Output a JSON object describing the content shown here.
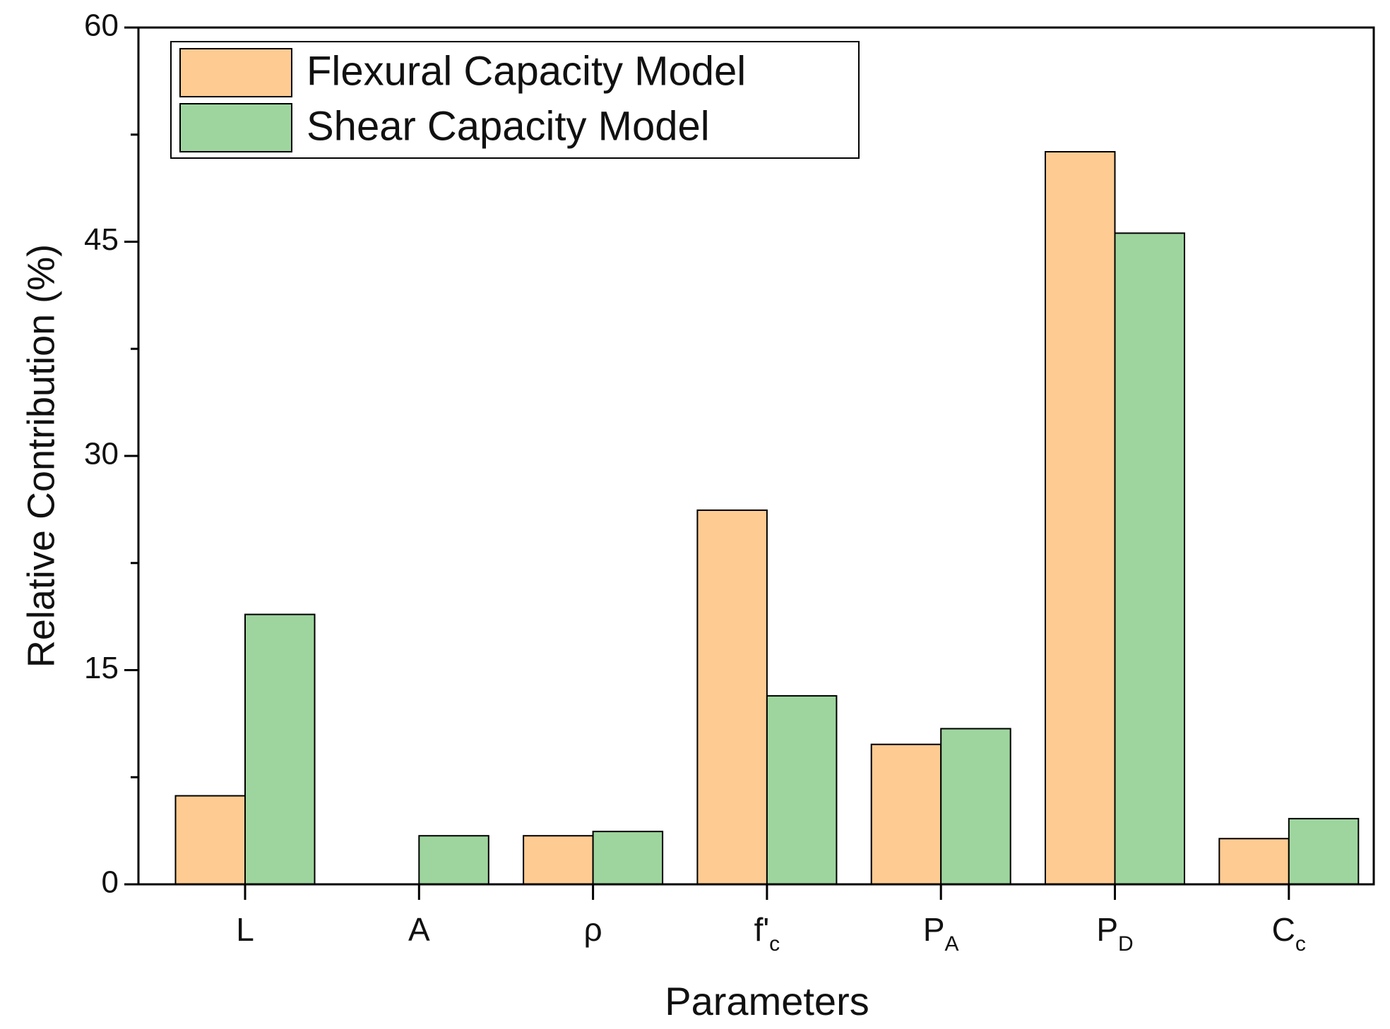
{
  "chart_data": {
    "type": "bar",
    "x_label": "Parameters",
    "y_label": "Relative Contribution (%)",
    "categories": [
      "L",
      "A",
      "ρ",
      "f'",
      "P",
      "P",
      "C"
    ],
    "category_subscripts": [
      null,
      null,
      null,
      "c",
      "A",
      "D",
      "c"
    ],
    "series": [
      {
        "name": "Flexural Capacity Model",
        "color": "#fecb92",
        "values": [
          6.2,
          0,
          3.4,
          26.2,
          9.8,
          51.3,
          3.2
        ]
      },
      {
        "name": "Shear Capacity Model",
        "color": "#9ed59e",
        "values": [
          18.9,
          3.4,
          3.7,
          13.2,
          10.9,
          45.6,
          4.6
        ]
      }
    ],
    "ylim": [
      0,
      60
    ],
    "yticks": [
      0,
      15,
      30,
      45,
      60
    ],
    "minor_yticks": [
      7.5,
      22.5,
      37.5,
      52.5
    ],
    "grid": false,
    "legend": "top-left"
  }
}
